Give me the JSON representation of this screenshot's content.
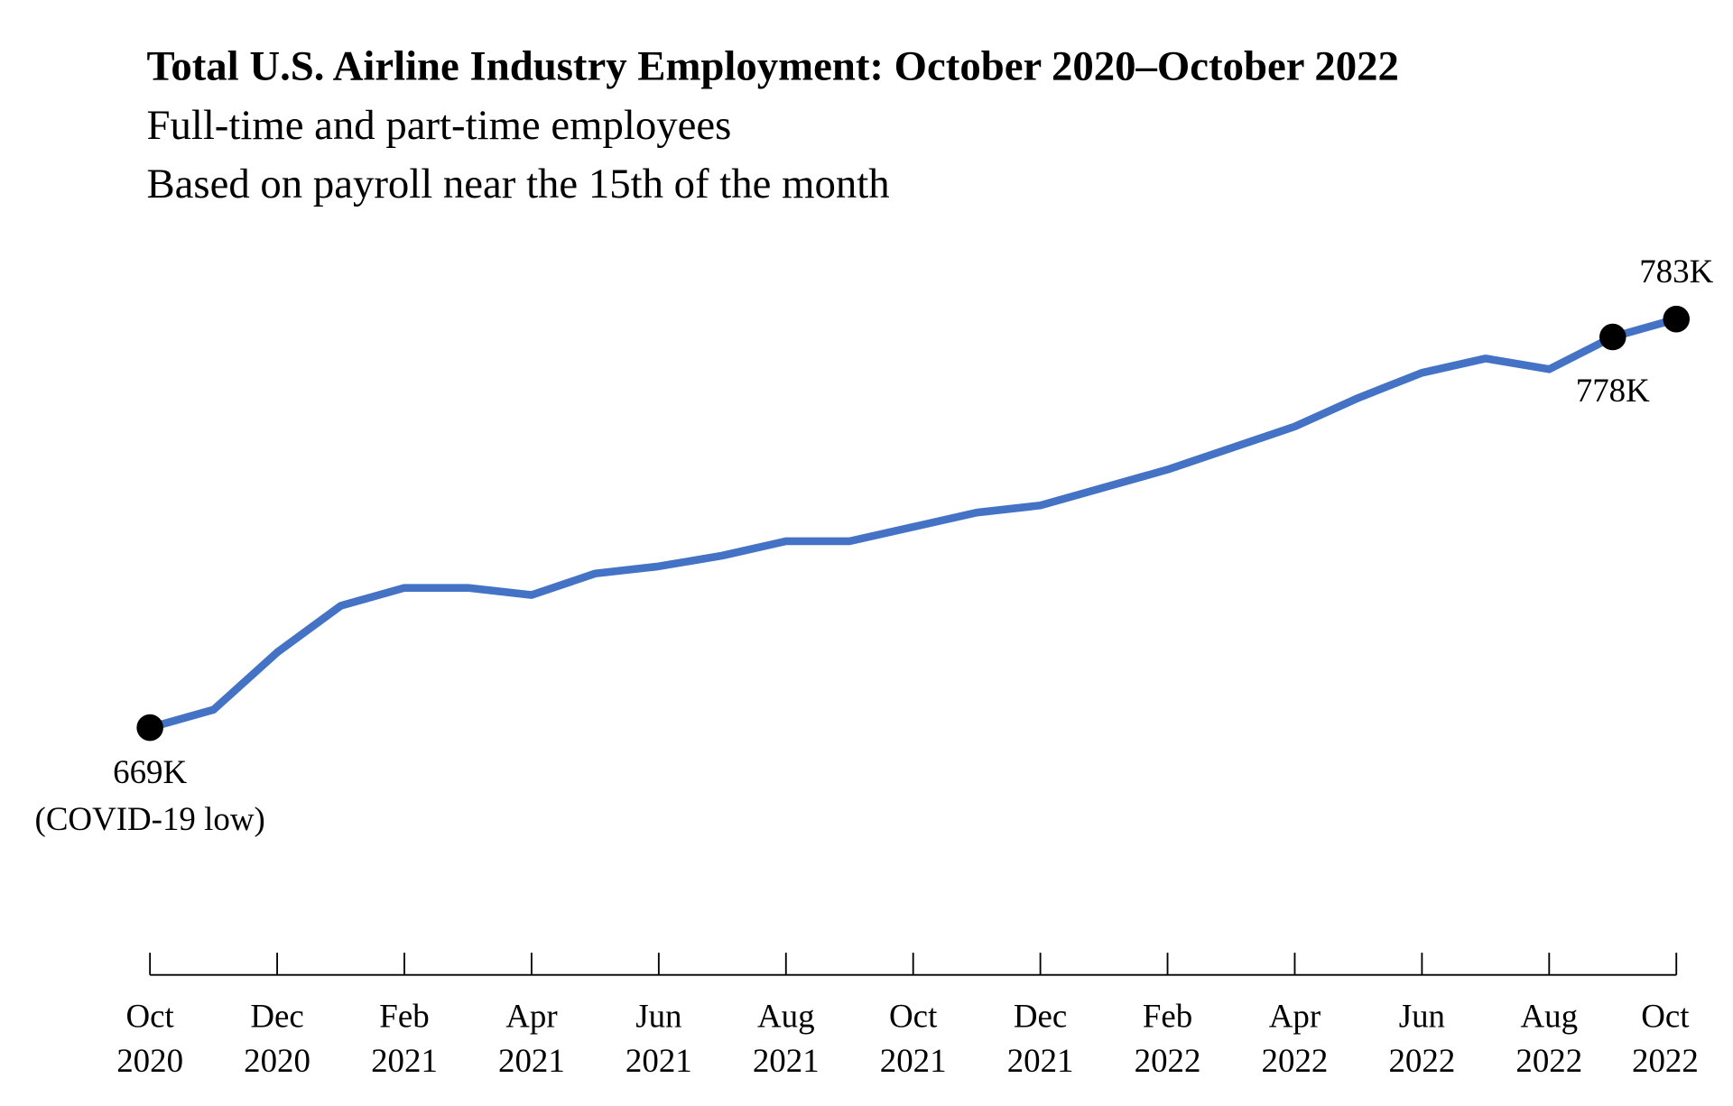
{
  "chart_data": {
    "type": "line",
    "title": "Total U.S. Airline Industry Employment: October 2020–October 2022",
    "subtitle_lines": [
      "Full-time and part-time employees",
      "Based on payroll near the 15th of the month"
    ],
    "xlabel": "",
    "ylabel": "",
    "ylim": [
      600,
      800
    ],
    "grid": false,
    "line_color": "#4472C4",
    "x": [
      "2020-10",
      "2020-11",
      "2020-12",
      "2021-01",
      "2021-02",
      "2021-03",
      "2021-04",
      "2021-05",
      "2021-06",
      "2021-07",
      "2021-08",
      "2021-09",
      "2021-10",
      "2021-11",
      "2021-12",
      "2022-01",
      "2022-02",
      "2022-03",
      "2022-04",
      "2022-05",
      "2022-06",
      "2022-07",
      "2022-08",
      "2022-09",
      "2022-10"
    ],
    "series": [
      {
        "values": [
          669,
          674,
          690,
          703,
          708,
          708,
          706,
          712,
          714,
          717,
          721,
          721,
          725,
          729,
          731,
          736,
          741,
          747,
          753,
          761,
          768,
          772,
          769,
          778,
          783
        ]
      }
    ],
    "x_ticks": [
      {
        "month": "Oct",
        "year": "2020"
      },
      {
        "month": "Dec",
        "year": "2020"
      },
      {
        "month": "Feb",
        "year": "2021"
      },
      {
        "month": "Apr",
        "year": "2021"
      },
      {
        "month": "Jun",
        "year": "2021"
      },
      {
        "month": "Aug",
        "year": "2021"
      },
      {
        "month": "Oct",
        "year": "2021"
      },
      {
        "month": "Dec",
        "year": "2021"
      },
      {
        "month": "Feb",
        "year": "2022"
      },
      {
        "month": "Apr",
        "year": "2022"
      },
      {
        "month": "Jun",
        "year": "2022"
      },
      {
        "month": "Aug",
        "year": "2022"
      },
      {
        "month": "Oct",
        "year": "2022"
      }
    ],
    "annotations": [
      {
        "index": 0,
        "label": "669K",
        "note": "(COVID-19 low)"
      },
      {
        "index": 23,
        "label": "778K"
      },
      {
        "index": 24,
        "label": "783K"
      }
    ]
  }
}
